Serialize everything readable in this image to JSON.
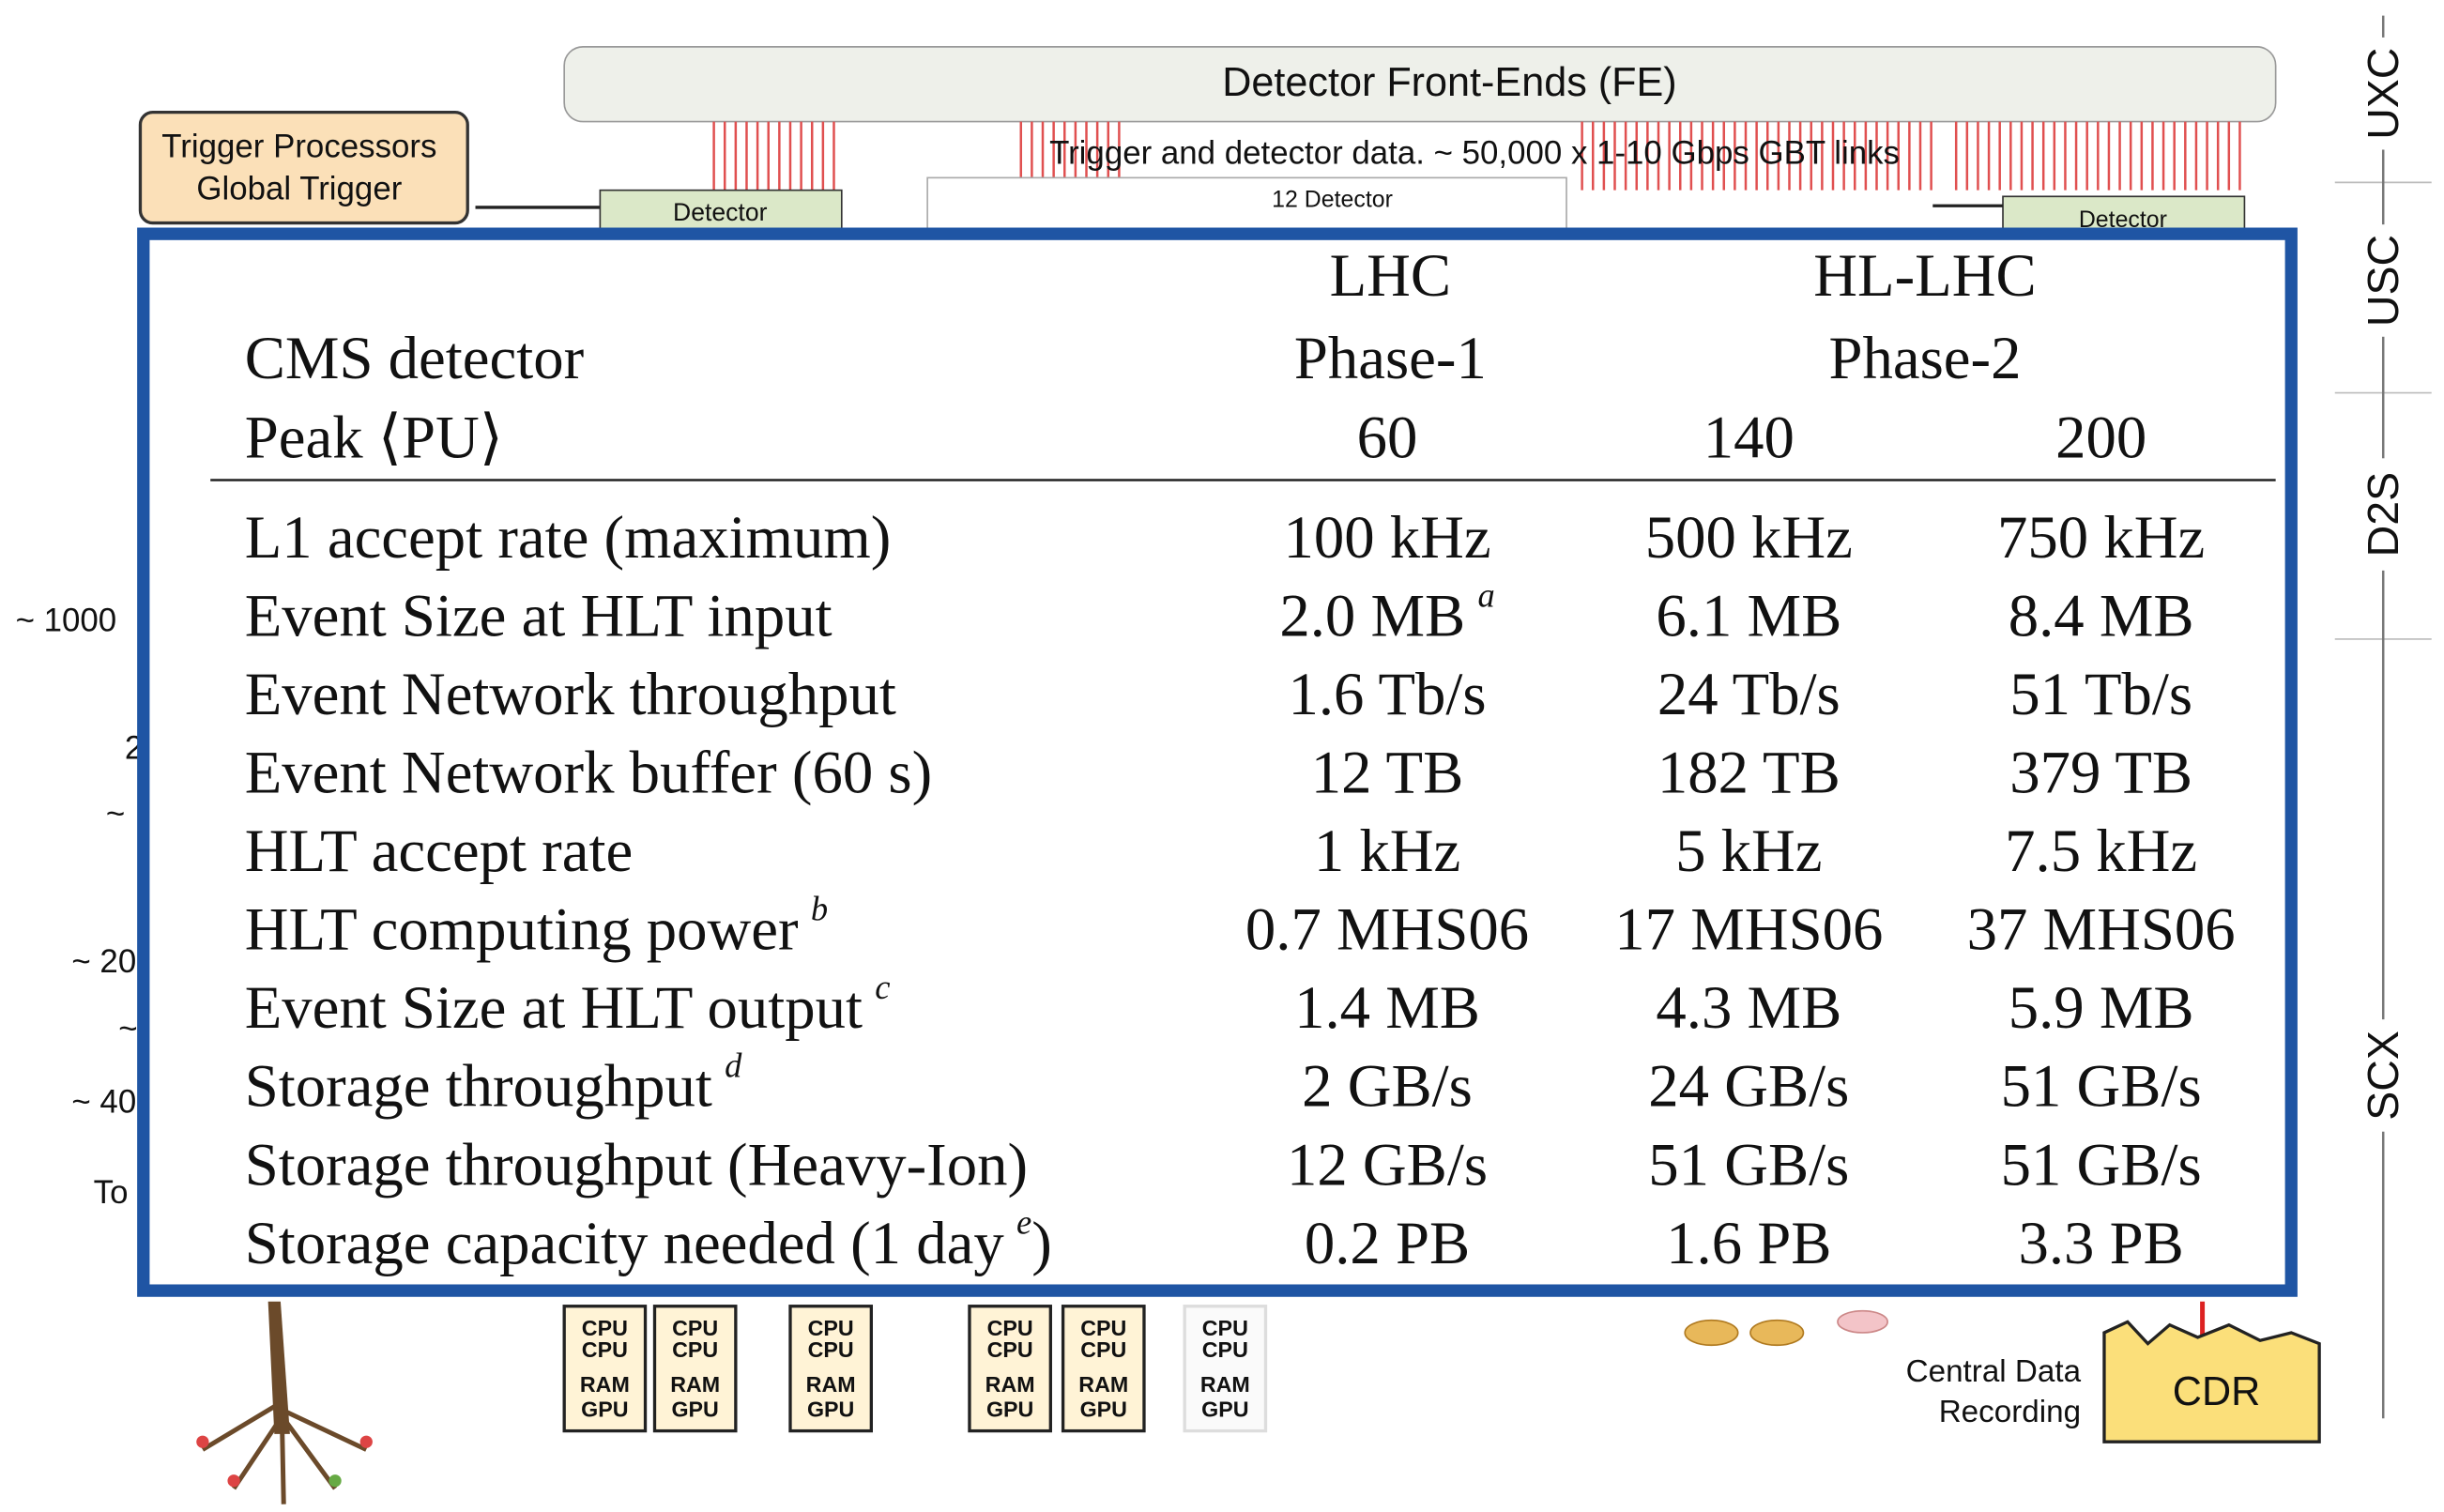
{
  "diagram": {
    "front_ends": "Detector Front-Ends (FE)",
    "links": "Trigger and detector data. ~ 50,000 x 1-10 Gbps GBT links",
    "trigger_line1": "Trigger Processors",
    "trigger_line2": "Global Trigger",
    "detector_left": "Detector",
    "detector_mid": "12 Detector",
    "detector_right": "Detector",
    "left_labels": [
      "~ 1000",
      "2",
      "~",
      "~ 20",
      "~",
      "~ 40",
      "To"
    ],
    "zones": [
      "UXC",
      "USC",
      "D2S",
      "SCX"
    ],
    "servers": [
      [
        "CPU",
        "CPU",
        "RAM",
        "GPU"
      ],
      [
        "CPU",
        "CPU",
        "RAM",
        "GPU"
      ],
      [
        "CPU",
        "CPU",
        "RAM",
        "GPU"
      ],
      [
        "CPU",
        "CPU",
        "RAM",
        "GPU"
      ],
      [
        "CPU",
        "CPU",
        "RAM",
        "GPU"
      ],
      [
        "CPU",
        "CPU",
        "RAM",
        "GPU"
      ]
    ],
    "cdr_line1": "Central Data",
    "cdr_line2": "Recording",
    "cdr": "CDR"
  },
  "table": {
    "header": {
      "machine": [
        "LHC",
        "HL-LHC"
      ],
      "detector_label": "CMS detector",
      "phases": [
        "Phase-1",
        "Phase-2"
      ],
      "pu_label": "Peak ⟨PU⟩",
      "pu": [
        "60",
        "140",
        "200"
      ]
    },
    "rows": [
      {
        "label": "L1 accept rate (maximum)",
        "values": [
          "100 kHz",
          "500 kHz",
          "750 kHz"
        ]
      },
      {
        "label": "Event Size at HLT input",
        "values": [
          {
            "text": "2.0 MB",
            "note": "a"
          },
          "6.1 MB",
          "8.4 MB"
        ]
      },
      {
        "label": "Event Network throughput",
        "values": [
          "1.6 Tb/s",
          "24 Tb/s",
          "51 Tb/s"
        ]
      },
      {
        "label": "Event Network buffer (60 s)",
        "values": [
          "12 TB",
          "182 TB",
          "379 TB"
        ]
      },
      {
        "label": "HLT accept rate",
        "values": [
          "1 kHz",
          "5 kHz",
          "7.5 kHz"
        ]
      },
      {
        "label": "HLT computing power",
        "label_note": "b",
        "values": [
          "0.7 MHS06",
          "17 MHS06",
          "37 MHS06"
        ]
      },
      {
        "label": "Event Size at HLT output",
        "label_note": "c",
        "values": [
          "1.4 MB",
          "4.3 MB",
          "5.9 MB"
        ]
      },
      {
        "label": "Storage throughput",
        "label_note": "d",
        "values": [
          "2 GB/s",
          "24 GB/s",
          "51 GB/s"
        ]
      },
      {
        "label": "Storage throughput (Heavy-Ion)",
        "values": [
          "12 GB/s",
          "51 GB/s",
          "51 GB/s"
        ]
      },
      {
        "label": "Storage capacity needed (1 day",
        "label_note": "e",
        "label_after": ")",
        "values": [
          "0.2 PB",
          "1.6 PB",
          "3.3 PB"
        ]
      }
    ]
  }
}
